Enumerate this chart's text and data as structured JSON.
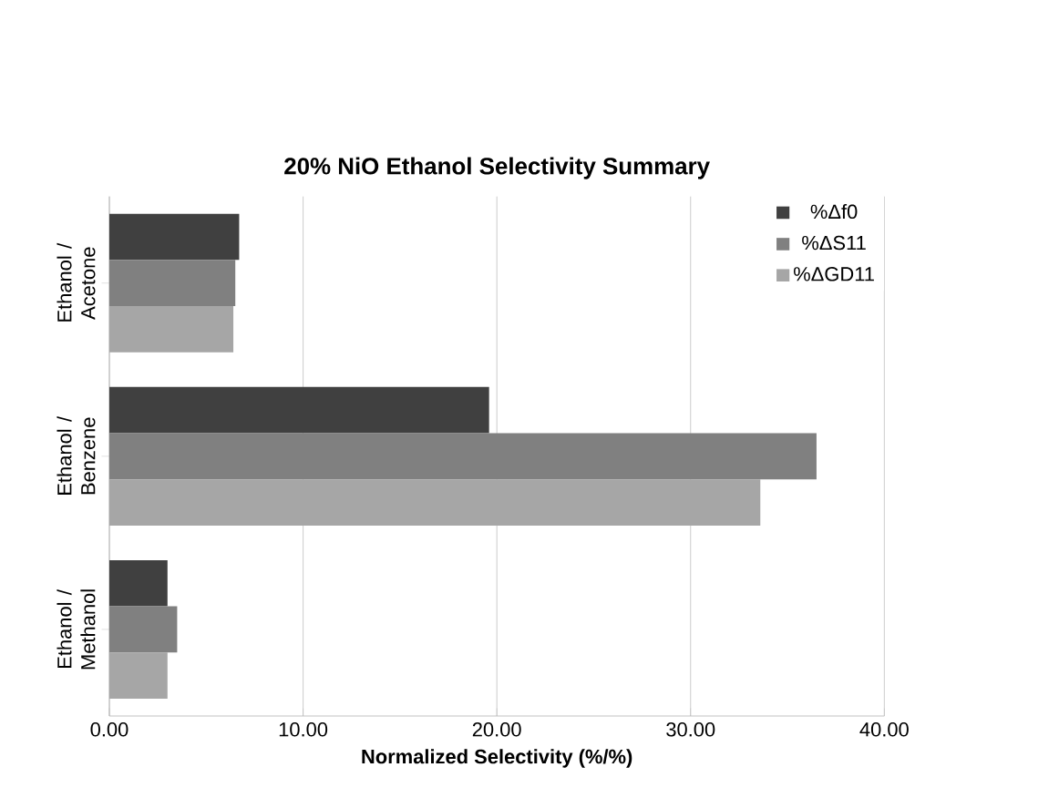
{
  "chart_data": {
    "type": "bar",
    "orientation": "horizontal",
    "title": "20% NiO Ethanol Selectivity Summary",
    "xlabel": "Normalized Selectivity (%/%)",
    "categories": [
      "Ethanol / Acetone",
      "Ethanol / Benzene",
      "Ethanol / Methanol"
    ],
    "series": [
      {
        "name": "%Δf0",
        "color": "#404040",
        "values": [
          6.7,
          19.6,
          3.0
        ]
      },
      {
        "name": "%ΔS11",
        "color": "#808080",
        "values": [
          6.5,
          36.5,
          3.5
        ]
      },
      {
        "name": "%ΔGD11",
        "color": "#a6a6a6",
        "values": [
          6.4,
          33.6,
          3.0
        ]
      }
    ],
    "xlim": [
      0,
      40
    ],
    "xticks": [
      {
        "value": 0,
        "label": "0.00"
      },
      {
        "value": 10,
        "label": "10.00"
      },
      {
        "value": 20,
        "label": "20.00"
      },
      {
        "value": 30,
        "label": "30.00"
      },
      {
        "value": 40,
        "label": "40.00"
      }
    ],
    "grid": "x",
    "legend": "top right"
  }
}
